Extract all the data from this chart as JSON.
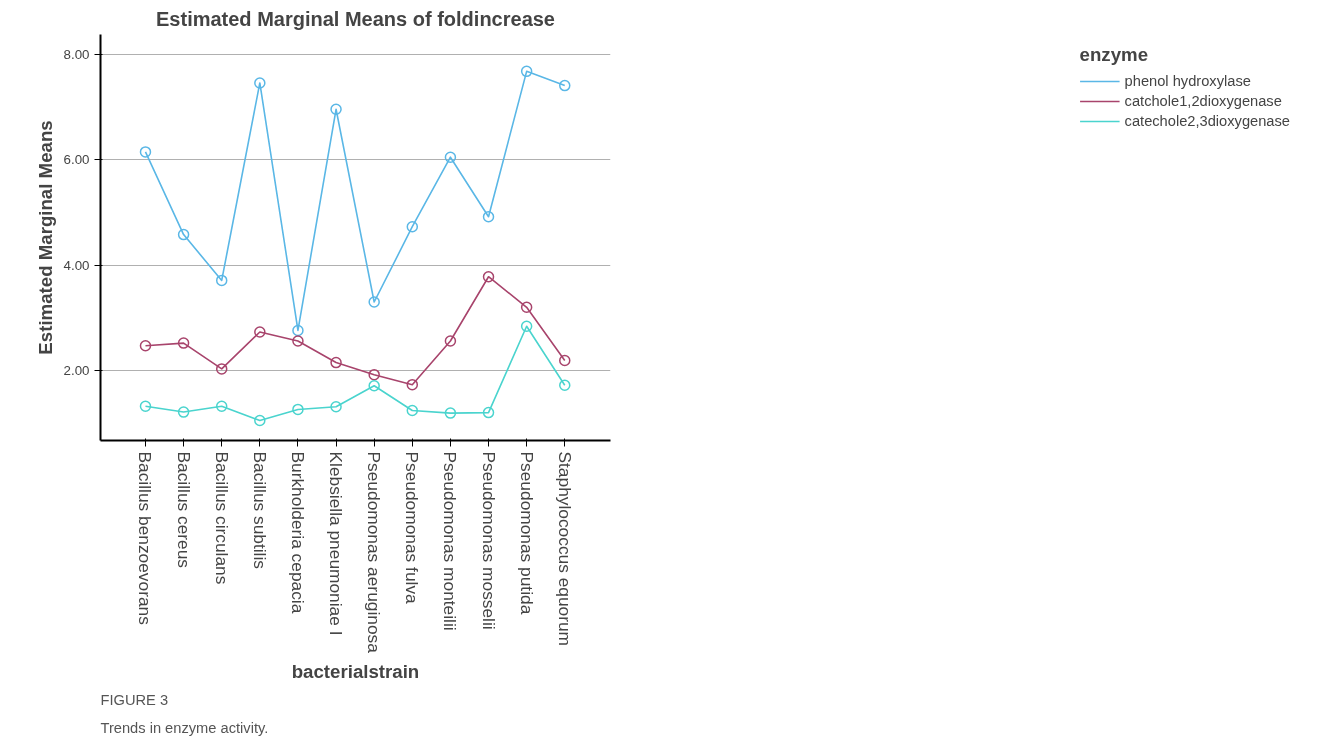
{
  "chart_data": {
    "type": "line",
    "title": "Estimated Marginal Means of foldincrease",
    "xlabel": "bacterialstrain",
    "ylabel": "Estimated Marginal Means",
    "legend_title": "enzyme",
    "categories": [
      "Bacillus benzoevorans",
      "Bacillus cereus",
      "Bacillus circulans",
      "Bacillus subtilis",
      "Burkholderia cepacia",
      "Klebsiella pneumoniae I",
      "Pseudomonas aeruginosa",
      "Pseudomonas fulva",
      "Pseudomonas monteilii",
      "Pseudomonas mosselii",
      "Pseudomonas putida",
      "Staphylococcus equorum"
    ],
    "series": [
      {
        "name": "phenol hydroxylase",
        "color": "#5ab7e6",
        "values": [
          6.15,
          4.58,
          3.71,
          7.46,
          2.76,
          6.96,
          3.3,
          4.73,
          6.05,
          4.92,
          7.68,
          7.41
        ]
      },
      {
        "name": "catchole1,2dioxygenase",
        "color": "#a8446c",
        "values": [
          2.47,
          2.52,
          2.03,
          2.73,
          2.56,
          2.15,
          1.92,
          1.73,
          2.56,
          3.78,
          3.2,
          2.19
        ]
      },
      {
        "name": "catechole2,3dioxygenase",
        "color": "#4ad4ce",
        "values": [
          1.32,
          1.21,
          1.32,
          1.05,
          1.26,
          1.31,
          1.71,
          1.24,
          1.19,
          1.2,
          2.84,
          1.72
        ]
      }
    ],
    "ylim": [
      0.67,
      8.38
    ],
    "yticks": [
      {
        "value": 2,
        "label": "2.00"
      },
      {
        "value": 4,
        "label": "4.00"
      },
      {
        "value": 6,
        "label": "6.00"
      },
      {
        "value": 8,
        "label": "8.00"
      }
    ],
    "grid": "y",
    "legend": "right",
    "marker": "circle",
    "line_style": "solid",
    "annotations": [
      "FIGURE 3",
      "Trends in enzyme activity."
    ]
  }
}
